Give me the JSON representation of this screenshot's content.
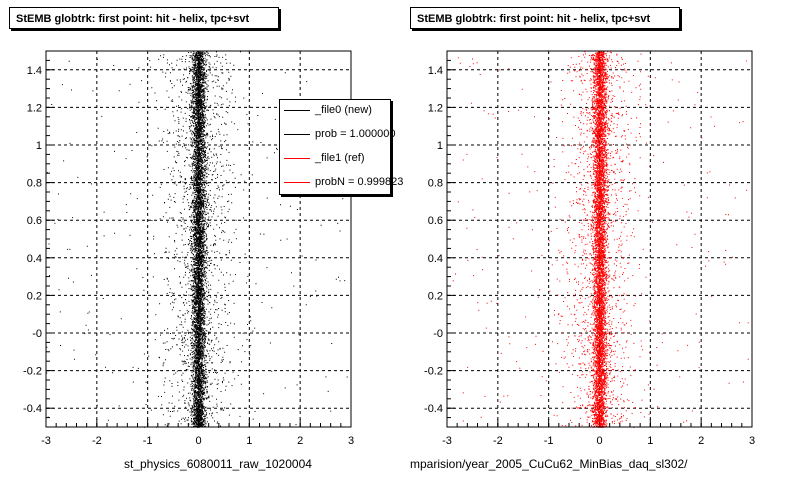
{
  "panels": [
    {
      "title": "StEMB globtrk: first point: hit - helix, tpc+svt",
      "xlabel": "st_physics_6080011_raw_1020004",
      "color": "#000000"
    },
    {
      "title": "StEMB globtrk: first point: hit - helix, tpc+svt",
      "xlabel": "mparision/year_2005_CuCu62_MinBias_daq_sl302/",
      "color": "#ff0000"
    }
  ],
  "legend": {
    "entries": [
      {
        "label": "_file0 (new)",
        "color": "#000000"
      },
      {
        "label": "prob = 1.000000",
        "color": "#000000"
      },
      {
        "label": "_file1 (ref)",
        "color": "#ff0000"
      },
      {
        "label": "probN = 0.999823",
        "color": "#ff0000"
      }
    ]
  },
  "chart_data": [
    {
      "type": "scatter",
      "title": "StEMB globtrk: first point: hit - helix, tpc+svt",
      "xlabel": "st_physics_6080011_raw_1020004",
      "ylabel": "",
      "xlim": [
        -3,
        3
      ],
      "ylim": [
        -0.5,
        1.5
      ],
      "xticks": [
        "-3",
        "-2",
        "-1",
        "0",
        "1",
        "2",
        "3"
      ],
      "yticks": [
        "-0.4",
        "-0.2",
        "-0",
        "0.2",
        "0.4",
        "0.6",
        "0.8",
        "1",
        "1.2",
        "1.4"
      ],
      "grid": true,
      "series": [
        {
          "name": "_file0 (new)",
          "color": "#000000",
          "x_center": 0.0,
          "core_halfwidth": 0.12,
          "halo_halfwidth": 1.0
        }
      ]
    },
    {
      "type": "scatter",
      "title": "StEMB globtrk: first point: hit - helix, tpc+svt",
      "xlabel": "mparision/year_2005_CuCu62_MinBias_daq_sl302/",
      "ylabel": "",
      "xlim": [
        -3,
        3
      ],
      "ylim": [
        -0.5,
        1.5
      ],
      "xticks": [
        "-3",
        "-2",
        "-1",
        "0",
        "1",
        "2",
        "3"
      ],
      "yticks": [
        "-0.4",
        "-0.2",
        "-0",
        "0.2",
        "0.4",
        "0.6",
        "0.8",
        "1",
        "1.2",
        "1.4"
      ],
      "grid": true,
      "series": [
        {
          "name": "_file1 (ref)",
          "color": "#ff0000",
          "x_center": 0.0,
          "core_halfwidth": 0.12,
          "halo_halfwidth": 1.0
        }
      ]
    }
  ]
}
